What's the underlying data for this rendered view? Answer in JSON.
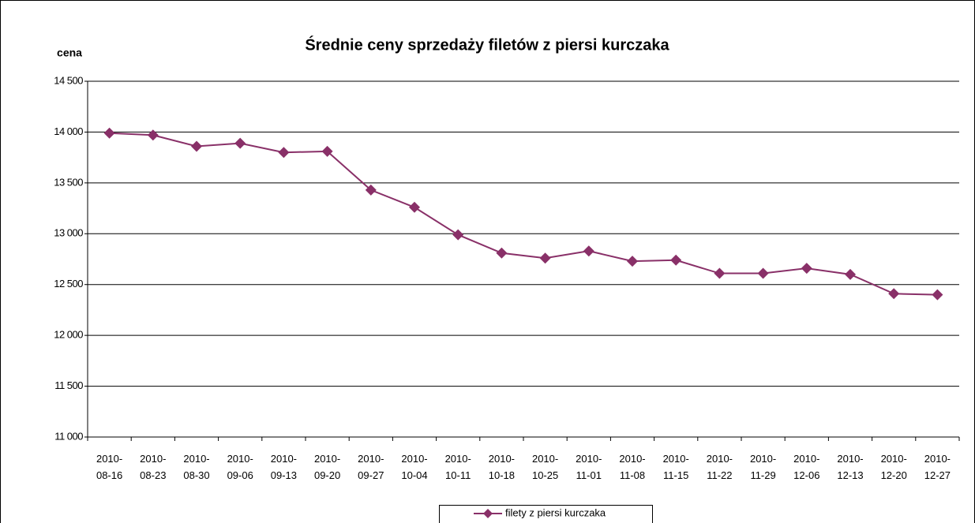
{
  "chart_data": {
    "type": "line",
    "title": "Średnie ceny sprzedaży filetów z piersi kurczaka",
    "y_label": "cena",
    "categories": [
      "2010-08-16",
      "2010-08-23",
      "2010-08-30",
      "2010-09-06",
      "2010-09-13",
      "2010-09-20",
      "2010-09-27",
      "2010-10-04",
      "2010-10-11",
      "2010-10-18",
      "2010-10-25",
      "2010-11-01",
      "2010-11-08",
      "2010-11-15",
      "2010-11-22",
      "2010-11-29",
      "2010-12-06",
      "2010-12-13",
      "2010-12-20",
      "2010-12-27"
    ],
    "series": [
      {
        "name": "filety z piersi kurczaka",
        "color": "#893068",
        "values": [
          13990,
          13970,
          13860,
          13890,
          13800,
          13810,
          13430,
          13260,
          12990,
          12810,
          12760,
          12830,
          12730,
          12740,
          12610,
          12610,
          12660,
          12600,
          12410,
          12400
        ]
      }
    ],
    "ylim": [
      11000,
      14500
    ],
    "yticks": [
      {
        "value": 11000,
        "label": "11 000"
      },
      {
        "value": 11500,
        "label": "11 500"
      },
      {
        "value": 12000,
        "label": "12 000"
      },
      {
        "value": 12500,
        "label": "12 500"
      },
      {
        "value": 13000,
        "label": "13 000"
      },
      {
        "value": 13500,
        "label": "13 500"
      },
      {
        "value": 14000,
        "label": "14 000"
      },
      {
        "value": 14500,
        "label": "14 500"
      }
    ],
    "grid": true
  }
}
